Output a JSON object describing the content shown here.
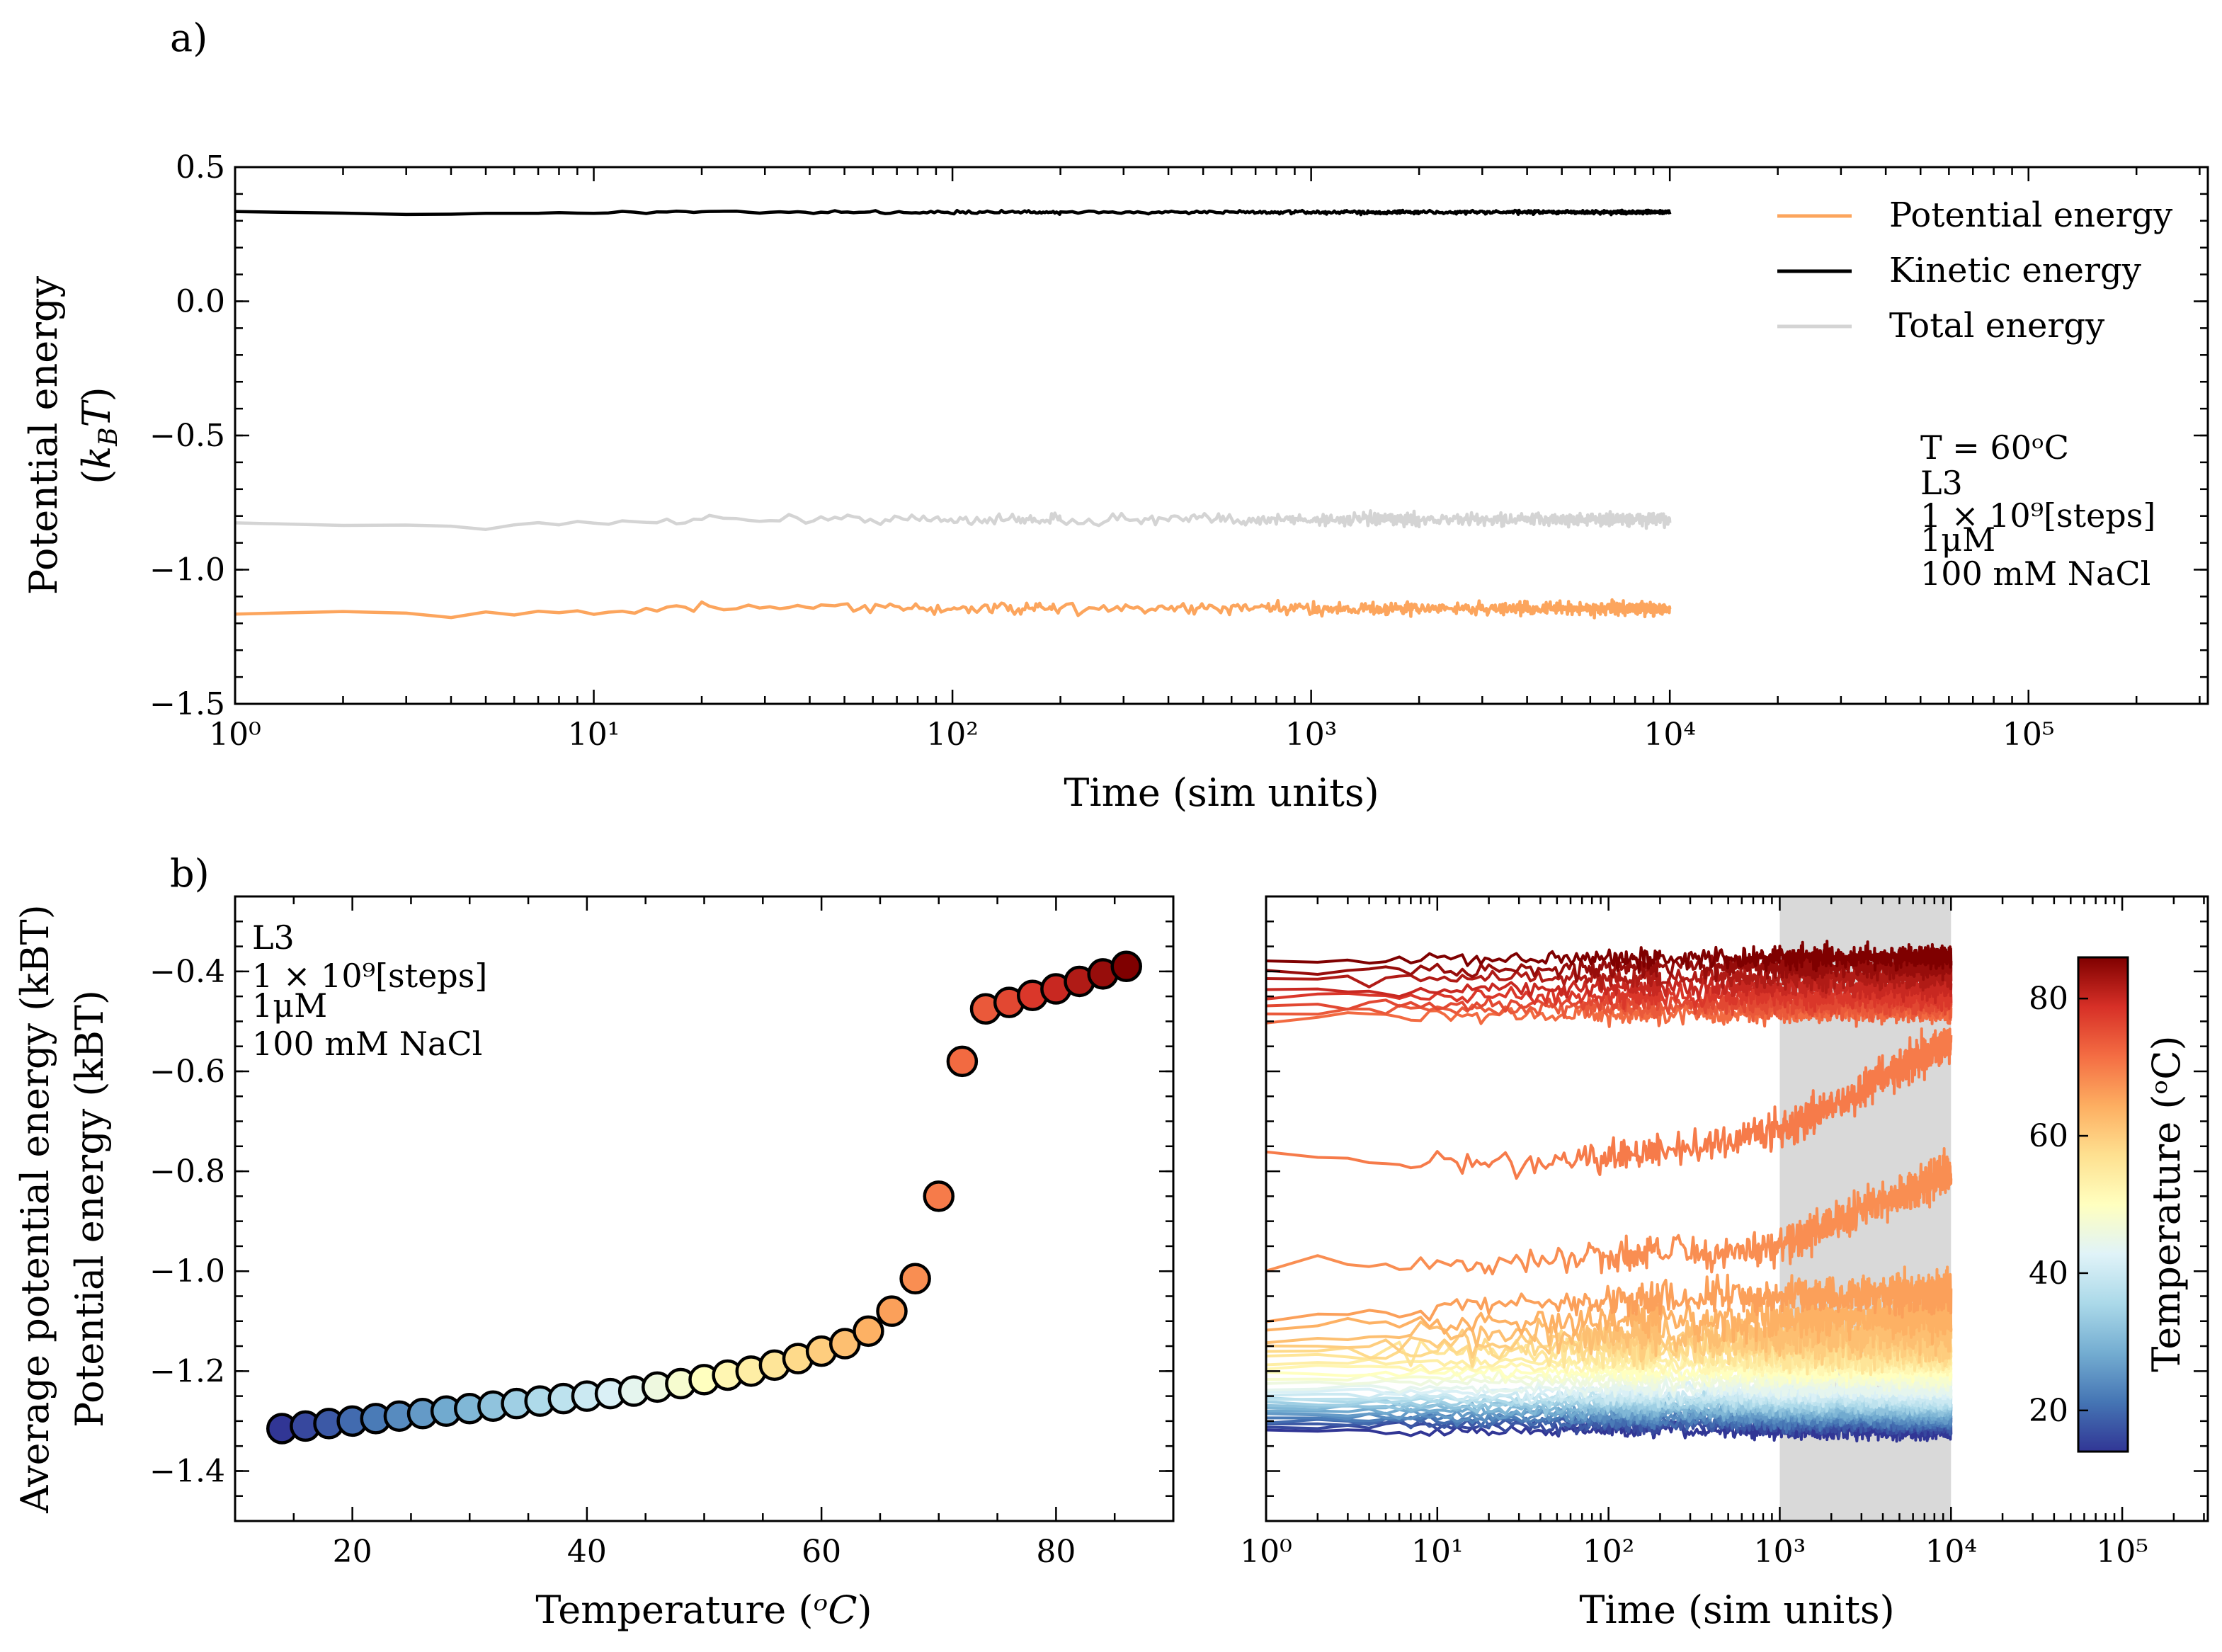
{
  "panel_labels": [
    "a)",
    "b)"
  ],
  "chart_data": [
    {
      "type": "line",
      "panel": "a)",
      "xscale": "log",
      "xlim": [
        1,
        316228
      ],
      "ylim": [
        -1.5,
        0.5
      ],
      "xlabel": "Time (sim units)",
      "ylabel": [
        "Potential energy",
        "(kBT)"
      ],
      "x_ticks": [
        1,
        10,
        100,
        1000,
        10000,
        100000
      ],
      "x_tick_labels": [
        "10⁰",
        "10¹",
        "10²",
        "10³",
        "10⁴",
        "10⁵"
      ],
      "y_ticks": [
        -1.5,
        -1.0,
        -0.5,
        0.0,
        0.5
      ],
      "y_tick_labels": [
        "−1.5",
        "−1.0",
        "−0.5",
        "0.0",
        "0.5"
      ],
      "legend_position": "top-right",
      "series": [
        {
          "name": "Potential energy",
          "color": "#fca55d",
          "x": [
            1,
            2,
            4,
            10,
            20,
            100,
            1000,
            10000
          ],
          "values": [
            -1.16,
            -1.155,
            -1.17,
            -1.16,
            -1.14,
            -1.145,
            -1.145,
            -1.145
          ],
          "noise": 0.022
        },
        {
          "name": "Kinetic energy",
          "color": "#000000",
          "x": [
            1,
            2,
            4,
            10,
            20,
            100,
            1000,
            10000
          ],
          "values": [
            0.335,
            0.33,
            0.325,
            0.33,
            0.333,
            0.332,
            0.332,
            0.332
          ],
          "noise": 0.006
        },
        {
          "name": "Total energy",
          "color": "#d4d4d4",
          "x": [
            1,
            2,
            4,
            10,
            20,
            100,
            1000,
            10000
          ],
          "values": [
            -0.825,
            -0.83,
            -0.84,
            -0.83,
            -0.81,
            -0.813,
            -0.813,
            -0.813
          ],
          "noise": 0.022
        }
      ],
      "annotation": [
        "T = 60ᵒC",
        "L3",
        "1 × 10⁹[steps]",
        "1μM",
        "100 mM NaCl"
      ]
    },
    {
      "type": "scatter",
      "panel": "b) left",
      "xlim": [
        10,
        90
      ],
      "ylim": [
        -1.5,
        -0.25
      ],
      "xlabel": "Temperature (ᵒC)",
      "ylabel": [
        "Average potential energy (kBT)",
        "Potential energy (kBT)"
      ],
      "x_ticks": [
        20,
        40,
        60,
        80
      ],
      "x_tick_labels": [
        "20",
        "40",
        "60",
        "80"
      ],
      "y_ticks": [
        -1.4,
        -1.2,
        -1.0,
        -0.8,
        -0.6,
        -0.4
      ],
      "y_tick_labels": [
        "−1.4",
        "−1.2",
        "−1.0",
        "−0.8",
        "−0.6",
        "−0.4"
      ],
      "x": [
        14,
        16,
        18,
        20,
        22,
        24,
        26,
        28,
        30,
        32,
        34,
        36,
        38,
        40,
        42,
        44,
        46,
        48,
        50,
        52,
        54,
        56,
        58,
        60,
        62,
        64,
        66,
        68,
        70,
        72,
        74,
        76,
        78,
        80,
        82,
        84,
        86
      ],
      "values": [
        -1.315,
        -1.31,
        -1.305,
        -1.3,
        -1.295,
        -1.29,
        -1.285,
        -1.28,
        -1.275,
        -1.27,
        -1.265,
        -1.26,
        -1.255,
        -1.25,
        -1.245,
        -1.24,
        -1.232,
        -1.225,
        -1.217,
        -1.208,
        -1.2,
        -1.188,
        -1.175,
        -1.16,
        -1.145,
        -1.12,
        -1.08,
        -1.015,
        -0.85,
        -0.58,
        -0.475,
        -0.462,
        -0.448,
        -0.435,
        -0.42,
        -0.405,
        -0.39
      ],
      "annotation": [
        "L3",
        "1 × 10⁹[steps]",
        "1μM",
        "100 mM NaCl"
      ]
    },
    {
      "type": "line",
      "panel": "b) right",
      "xscale": "log",
      "xlim": [
        1,
        316228
      ],
      "ylim": [
        -1.5,
        -0.25
      ],
      "xlabel": "Time (sim units)",
      "x_ticks": [
        1,
        10,
        100,
        1000,
        10000,
        100000
      ],
      "x_tick_labels": [
        "10⁰",
        "10¹",
        "10²",
        "10³",
        "10⁴",
        "10⁵"
      ],
      "shaded_region": [
        1000,
        10000
      ],
      "colorbar": {
        "label": "Temperature (ᵒC)",
        "range": [
          14,
          86
        ],
        "ticks": [
          20,
          40,
          60,
          80
        ],
        "tick_labels": [
          "20",
          "40",
          "60",
          "80"
        ]
      },
      "series_temperatures": [
        14,
        16,
        18,
        20,
        22,
        24,
        26,
        28,
        30,
        32,
        34,
        36,
        38,
        40,
        42,
        44,
        46,
        48,
        50,
        52,
        54,
        56,
        58,
        60,
        62,
        64,
        66,
        68,
        70,
        72,
        74,
        76,
        78,
        80,
        82,
        84,
        86
      ],
      "series_start_values": [
        -1.32,
        -1.31,
        -1.305,
        -1.3,
        -1.295,
        -1.29,
        -1.285,
        -1.28,
        -1.275,
        -1.27,
        -1.265,
        -1.26,
        -1.255,
        -1.25,
        -1.24,
        -1.235,
        -1.225,
        -1.215,
        -1.205,
        -1.195,
        -1.185,
        -1.17,
        -1.16,
        -1.15,
        -1.14,
        -1.12,
        -1.1,
        -0.98,
        -0.775,
        -0.5,
        -0.48,
        -0.47,
        -0.45,
        -0.44,
        -0.42,
        -0.4,
        -0.38
      ],
      "series_end_values": [
        -1.32,
        -1.31,
        -1.305,
        -1.3,
        -1.295,
        -1.29,
        -1.285,
        -1.28,
        -1.275,
        -1.27,
        -1.265,
        -1.26,
        -1.255,
        -1.25,
        -1.24,
        -1.235,
        -1.22,
        -1.21,
        -1.2,
        -1.19,
        -1.18,
        -1.16,
        -1.15,
        -1.14,
        -1.12,
        -1.09,
        -1.04,
        -0.8,
        -0.54,
        -0.48,
        -0.47,
        -0.46,
        -0.45,
        -0.43,
        -0.41,
        -0.39,
        -0.37
      ]
    }
  ]
}
